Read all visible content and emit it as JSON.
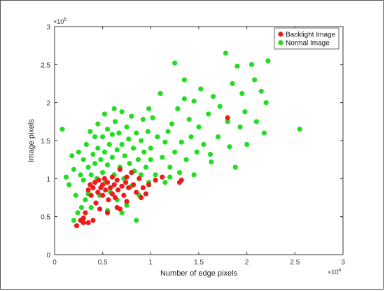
{
  "chart_data": {
    "type": "scatter",
    "title": "",
    "xlabel": "Number of edge pixels",
    "ylabel": "Image pixels",
    "x_multiplier": "×10",
    "x_exponent": "4",
    "y_multiplier": "×10",
    "y_exponent": "5",
    "xlim": [
      0,
      3
    ],
    "ylim": [
      0,
      3
    ],
    "x_ticks": [
      "0",
      "0.5",
      "1",
      "1.5",
      "2",
      "2.5",
      "3"
    ],
    "y_ticks": [
      "0",
      "0.5",
      "1",
      "1.5",
      "2",
      "2.5",
      "3"
    ],
    "legend_position": "top-right",
    "grid": false,
    "series": [
      {
        "name": "Normal Image",
        "color": "#22dd22",
        "points": [
          [
            0.08,
            1.65
          ],
          [
            0.12,
            1.02
          ],
          [
            0.15,
            0.92
          ],
          [
            0.18,
            1.3
          ],
          [
            0.2,
            1.12
          ],
          [
            0.22,
            0.78
          ],
          [
            0.24,
            0.55
          ],
          [
            0.25,
            1.35
          ],
          [
            0.27,
            1.05
          ],
          [
            0.28,
            0.62
          ],
          [
            0.3,
            1.25
          ],
          [
            0.3,
            0.98
          ],
          [
            0.32,
            0.72
          ],
          [
            0.33,
            1.45
          ],
          [
            0.35,
            1.15
          ],
          [
            0.35,
            0.8
          ],
          [
            0.37,
            1.62
          ],
          [
            0.38,
            1.05
          ],
          [
            0.4,
            1.32
          ],
          [
            0.4,
            0.88
          ],
          [
            0.42,
            1.55
          ],
          [
            0.42,
            1.2
          ],
          [
            0.44,
            1.0
          ],
          [
            0.45,
            1.72
          ],
          [
            0.45,
            1.4
          ],
          [
            0.47,
            0.78
          ],
          [
            0.48,
            1.25
          ],
          [
            0.5,
            1.55
          ],
          [
            0.5,
            1.08
          ],
          [
            0.52,
            1.85
          ],
          [
            0.52,
            1.35
          ],
          [
            0.53,
            0.95
          ],
          [
            0.55,
            1.65
          ],
          [
            0.55,
            1.18
          ],
          [
            0.57,
            1.45
          ],
          [
            0.58,
            0.82
          ],
          [
            0.6,
            1.28
          ],
          [
            0.6,
            1.58
          ],
          [
            0.62,
            1.05
          ],
          [
            0.63,
            1.75
          ],
          [
            0.65,
            1.38
          ],
          [
            0.65,
            0.72
          ],
          [
            0.67,
            1.6
          ],
          [
            0.68,
            1.15
          ],
          [
            0.7,
            1.88
          ],
          [
            0.7,
            1.45
          ],
          [
            0.72,
            1.0
          ],
          [
            0.73,
            1.3
          ],
          [
            0.75,
            1.68
          ],
          [
            0.75,
            0.65
          ],
          [
            0.77,
            1.52
          ],
          [
            0.78,
            1.2
          ],
          [
            0.8,
            1.82
          ],
          [
            0.8,
            0.9
          ],
          [
            0.82,
            1.4
          ],
          [
            0.83,
            1.1
          ],
          [
            0.85,
            1.6
          ],
          [
            0.87,
            1.25
          ],
          [
            0.88,
            0.78
          ],
          [
            0.9,
            1.5
          ],
          [
            0.9,
            1.05
          ],
          [
            0.92,
            1.78
          ],
          [
            0.93,
            1.35
          ],
          [
            0.95,
            1.15
          ],
          [
            0.97,
            1.62
          ],
          [
            0.98,
            0.95
          ],
          [
            1.0,
            1.4
          ],
          [
            1.0,
            1.25
          ],
          [
            1.02,
            1.8
          ],
          [
            1.05,
            1.05
          ],
          [
            1.07,
            1.55
          ],
          [
            1.1,
            2.12
          ],
          [
            1.12,
            1.28
          ],
          [
            1.15,
            0.95
          ],
          [
            1.18,
            1.62
          ],
          [
            1.2,
            1.15
          ],
          [
            1.22,
            1.72
          ],
          [
            1.25,
            1.35
          ],
          [
            1.28,
            1.92
          ],
          [
            1.3,
            1.08
          ],
          [
            1.32,
            1.48
          ],
          [
            1.35,
            2.05
          ],
          [
            1.37,
            1.25
          ],
          [
            1.4,
            1.78
          ],
          [
            1.42,
            1.55
          ],
          [
            1.45,
            2.02
          ],
          [
            1.48,
            1.35
          ],
          [
            1.5,
            1.68
          ],
          [
            1.52,
            2.18
          ],
          [
            1.55,
            1.45
          ],
          [
            1.6,
            1.85
          ],
          [
            1.63,
            1.22
          ],
          [
            1.65,
            2.08
          ],
          [
            1.7,
            1.55
          ],
          [
            1.72,
            1.95
          ],
          [
            1.78,
            2.65
          ],
          [
            1.8,
            1.75
          ],
          [
            1.82,
            1.42
          ],
          [
            1.85,
            2.25
          ],
          [
            1.88,
            1.15
          ],
          [
            1.9,
            2.48
          ],
          [
            1.93,
            1.68
          ],
          [
            1.95,
            2.12
          ],
          [
            1.98,
            1.88
          ],
          [
            2.0,
            1.45
          ],
          [
            2.05,
            2.5
          ],
          [
            2.08,
            2.3
          ],
          [
            2.1,
            1.75
          ],
          [
            2.15,
            2.15
          ],
          [
            2.18,
            1.6
          ],
          [
            2.2,
            2.0
          ],
          [
            2.22,
            2.55
          ],
          [
            2.55,
            1.65
          ],
          [
            1.35,
            2.3
          ],
          [
            1.25,
            2.52
          ],
          [
            0.98,
            1.92
          ],
          [
            1.15,
            1.48
          ],
          [
            0.62,
            1.92
          ],
          [
            0.2,
            0.45
          ],
          [
            0.38,
            0.62
          ],
          [
            0.55,
            0.58
          ],
          [
            0.7,
            0.55
          ],
          [
            0.85,
            0.45
          ],
          [
            1.45,
            1.05
          ],
          [
            1.62,
            1.32
          ],
          [
            1.2,
            1.02
          ]
        ]
      },
      {
        "name": "Backlight Image",
        "color": "#ee1b1b",
        "points": [
          [
            0.23,
            0.38
          ],
          [
            0.27,
            0.45
          ],
          [
            0.3,
            0.42
          ],
          [
            0.32,
            0.55
          ],
          [
            0.35,
            0.85
          ],
          [
            0.37,
            0.92
          ],
          [
            0.38,
            0.78
          ],
          [
            0.4,
            0.88
          ],
          [
            0.42,
            0.95
          ],
          [
            0.43,
            0.68
          ],
          [
            0.45,
            0.82
          ],
          [
            0.46,
            0.98
          ],
          [
            0.48,
            0.88
          ],
          [
            0.5,
            0.92
          ],
          [
            0.5,
            0.78
          ],
          [
            0.52,
            1.0
          ],
          [
            0.53,
            0.85
          ],
          [
            0.55,
            0.95
          ],
          [
            0.56,
            0.72
          ],
          [
            0.58,
            0.88
          ],
          [
            0.6,
            0.8
          ],
          [
            0.6,
            1.02
          ],
          [
            0.62,
            0.92
          ],
          [
            0.63,
            0.75
          ],
          [
            0.65,
            0.98
          ],
          [
            0.66,
            0.85
          ],
          [
            0.68,
            1.12
          ],
          [
            0.7,
            0.9
          ],
          [
            0.72,
            0.78
          ],
          [
            0.74,
            0.95
          ],
          [
            0.75,
            1.02
          ],
          [
            0.77,
            0.88
          ],
          [
            0.8,
            1.08
          ],
          [
            0.82,
            0.92
          ],
          [
            0.85,
            0.82
          ],
          [
            0.88,
            1.0
          ],
          [
            0.9,
            0.75
          ],
          [
            0.92,
            0.88
          ],
          [
            0.95,
            0.8
          ],
          [
            0.98,
            0.92
          ],
          [
            0.35,
            0.42
          ],
          [
            0.4,
            0.45
          ],
          [
            0.55,
            0.55
          ],
          [
            0.65,
            0.62
          ],
          [
            0.3,
            0.48
          ],
          [
            0.75,
            0.7
          ],
          [
            1.05,
            0.98
          ],
          [
            1.12,
            1.02
          ],
          [
            1.3,
            0.95
          ],
          [
            1.32,
            0.98
          ],
          [
            1.8,
            1.8
          ],
          [
            0.68,
            0.6
          ],
          [
            0.47,
            0.6
          ]
        ]
      }
    ]
  }
}
